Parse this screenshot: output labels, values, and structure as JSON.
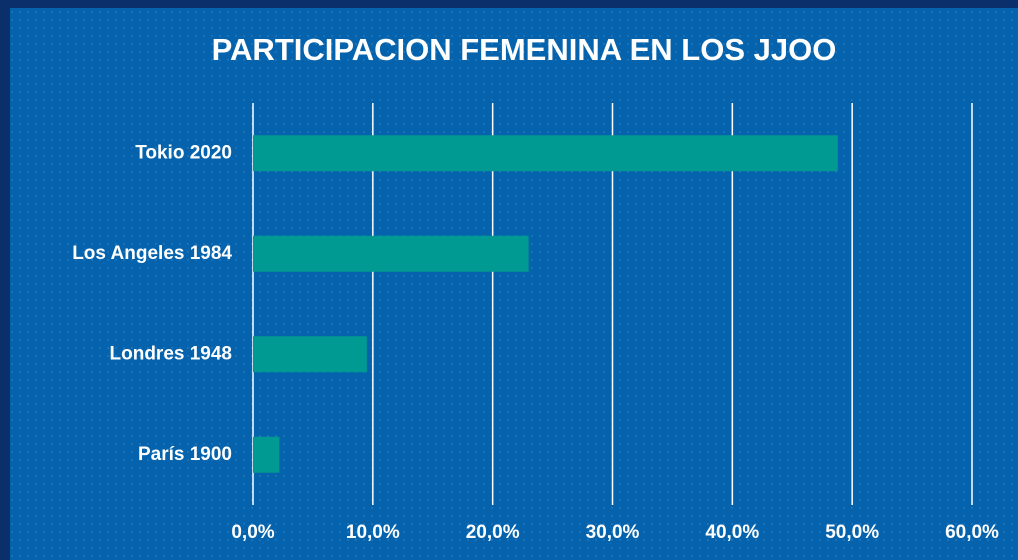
{
  "chart_data": {
    "type": "bar",
    "orientation": "horizontal",
    "title": "PARTICIPACION FEMENINA EN LOS JJOO",
    "categories": [
      "Tokio 2020",
      "Los Angeles 1984",
      "Londres 1948",
      "París 1900"
    ],
    "values": [
      48.8,
      23.0,
      9.5,
      2.2
    ],
    "color": "#009a92",
    "xlim": [
      0,
      60
    ],
    "xticks": [
      {
        "value": 0,
        "label": "0,0%"
      },
      {
        "value": 10,
        "label": "10,0%"
      },
      {
        "value": 20,
        "label": "20,0%"
      },
      {
        "value": 30,
        "label": "30,0%"
      },
      {
        "value": 40,
        "label": "40,0%"
      },
      {
        "value": 50,
        "label": "50,0%"
      },
      {
        "value": 60,
        "label": "60,0%"
      }
    ],
    "grid": true
  }
}
